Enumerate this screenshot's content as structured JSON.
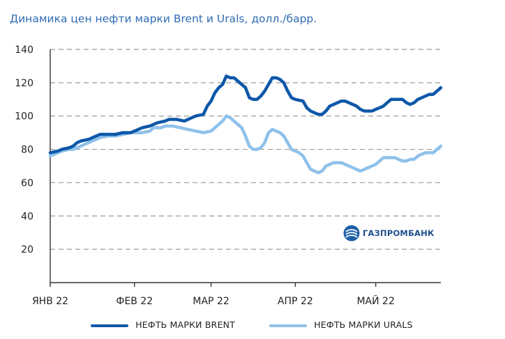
{
  "title": "Динамика цен нефти марки Brent и Urals, долл./барр.",
  "logo_text": "ГАЗПРОМБАНК",
  "colors": {
    "brent": "#0d57a8",
    "urals": "#8fc1ea",
    "grid": "#9b9b9b",
    "axis": "#333333",
    "title": "#2f6cb4"
  },
  "chart_data": {
    "type": "line",
    "title": "Динамика цен нефти марки Brent и Urals, долл./барр.",
    "xlabel": "",
    "ylabel": "",
    "ylim": [
      0,
      140
    ],
    "yticks": [
      20,
      40,
      60,
      80,
      100,
      120,
      140
    ],
    "xticks": [
      {
        "label": "ЯНВ 22",
        "x": 0
      },
      {
        "label": "ФЕВ 22",
        "x": 22
      },
      {
        "label": "МАР 22",
        "x": 42
      },
      {
        "label": "АПР 22",
        "x": 64
      },
      {
        "label": "МАЙ 22",
        "x": 85
      }
    ],
    "xlim": [
      0,
      102
    ],
    "grid": "horizontal dashed",
    "legend_position": "bottom",
    "series": [
      {
        "name": "НЕФТЬ МАРКИ BRENT",
        "color": "#0d57a8",
        "points": [
          [
            0,
            78
          ],
          [
            2,
            79
          ],
          [
            3,
            80
          ],
          [
            5,
            81
          ],
          [
            6,
            82
          ],
          [
            7,
            84
          ],
          [
            8,
            85
          ],
          [
            10,
            86
          ],
          [
            12,
            88
          ],
          [
            13,
            89
          ],
          [
            15,
            89
          ],
          [
            17,
            89
          ],
          [
            19,
            90
          ],
          [
            21,
            90
          ],
          [
            22,
            91
          ],
          [
            24,
            93
          ],
          [
            26,
            94
          ],
          [
            28,
            96
          ],
          [
            30,
            97
          ],
          [
            31,
            98
          ],
          [
            33,
            98
          ],
          [
            35,
            97
          ],
          [
            37,
            99
          ],
          [
            38,
            100
          ],
          [
            40,
            101
          ],
          [
            41,
            106
          ],
          [
            42,
            109
          ],
          [
            43,
            114
          ],
          [
            44,
            117
          ],
          [
            45,
            119
          ],
          [
            46,
            124
          ],
          [
            47,
            123
          ],
          [
            48,
            123
          ],
          [
            49,
            121
          ],
          [
            51,
            117
          ],
          [
            52,
            111
          ],
          [
            53,
            110
          ],
          [
            54,
            110
          ],
          [
            55,
            112
          ],
          [
            56,
            115
          ],
          [
            57,
            119
          ],
          [
            58,
            123
          ],
          [
            59,
            123
          ],
          [
            60,
            122
          ],
          [
            61,
            120
          ],
          [
            62,
            115
          ],
          [
            63,
            111
          ],
          [
            64,
            110
          ],
          [
            66,
            109
          ],
          [
            67,
            105
          ],
          [
            68,
            103
          ],
          [
            69,
            102
          ],
          [
            70,
            101
          ],
          [
            71,
            101
          ],
          [
            72,
            103
          ],
          [
            73,
            106
          ],
          [
            75,
            108
          ],
          [
            76,
            109
          ],
          [
            77,
            109
          ],
          [
            78,
            108
          ],
          [
            80,
            106
          ],
          [
            81,
            104
          ],
          [
            82,
            103
          ],
          [
            84,
            103
          ],
          [
            85,
            104
          ],
          [
            86,
            105
          ],
          [
            87,
            106
          ],
          [
            88,
            108
          ],
          [
            89,
            110
          ],
          [
            91,
            110
          ],
          [
            92,
            110
          ],
          [
            93,
            108
          ],
          [
            94,
            107
          ],
          [
            95,
            108
          ],
          [
            96,
            110
          ],
          [
            97,
            111
          ],
          [
            98,
            112
          ],
          [
            99,
            113
          ],
          [
            100,
            113
          ],
          [
            101,
            115
          ],
          [
            102,
            117
          ]
        ]
      },
      {
        "name": "НЕФТЬ МАРКИ URALS",
        "color": "#8fc1ea",
        "points": [
          [
            0,
            76
          ],
          [
            2,
            78
          ],
          [
            3,
            79
          ],
          [
            5,
            80
          ],
          [
            6,
            80
          ],
          [
            7,
            81
          ],
          [
            8,
            82
          ],
          [
            10,
            84
          ],
          [
            12,
            86
          ],
          [
            13,
            87
          ],
          [
            15,
            88
          ],
          [
            17,
            88
          ],
          [
            19,
            89
          ],
          [
            21,
            90
          ],
          [
            22,
            90
          ],
          [
            24,
            90
          ],
          [
            26,
            91
          ],
          [
            27,
            93
          ],
          [
            29,
            93
          ],
          [
            30,
            94
          ],
          [
            32,
            94
          ],
          [
            34,
            93
          ],
          [
            36,
            92
          ],
          [
            38,
            91
          ],
          [
            40,
            90
          ],
          [
            42,
            91
          ],
          [
            43,
            93
          ],
          [
            44,
            95
          ],
          [
            45,
            97
          ],
          [
            46,
            100
          ],
          [
            47,
            99
          ],
          [
            48,
            97
          ],
          [
            49,
            95
          ],
          [
            50,
            93
          ],
          [
            51,
            88
          ],
          [
            52,
            82
          ],
          [
            53,
            80
          ],
          [
            54,
            80
          ],
          [
            55,
            81
          ],
          [
            56,
            84
          ],
          [
            57,
            90
          ],
          [
            58,
            92
          ],
          [
            59,
            91
          ],
          [
            60,
            90
          ],
          [
            61,
            88
          ],
          [
            62,
            84
          ],
          [
            63,
            80
          ],
          [
            64,
            79
          ],
          [
            65,
            78
          ],
          [
            66,
            76
          ],
          [
            67,
            72
          ],
          [
            68,
            68
          ],
          [
            69,
            67
          ],
          [
            70,
            66
          ],
          [
            71,
            67
          ],
          [
            72,
            70
          ],
          [
            73,
            71
          ],
          [
            74,
            72
          ],
          [
            75,
            72
          ],
          [
            76,
            72
          ],
          [
            77,
            71
          ],
          [
            78,
            70
          ],
          [
            80,
            68
          ],
          [
            81,
            67
          ],
          [
            82,
            68
          ],
          [
            83,
            69
          ],
          [
            84,
            70
          ],
          [
            85,
            71
          ],
          [
            86,
            73
          ],
          [
            87,
            75
          ],
          [
            88,
            75
          ],
          [
            89,
            75
          ],
          [
            90,
            75
          ],
          [
            91,
            74
          ],
          [
            92,
            73
          ],
          [
            93,
            73
          ],
          [
            94,
            74
          ],
          [
            95,
            74
          ],
          [
            96,
            76
          ],
          [
            97,
            77
          ],
          [
            98,
            78
          ],
          [
            99,
            78
          ],
          [
            100,
            78
          ],
          [
            101,
            80
          ],
          [
            102,
            82
          ]
        ]
      }
    ]
  }
}
